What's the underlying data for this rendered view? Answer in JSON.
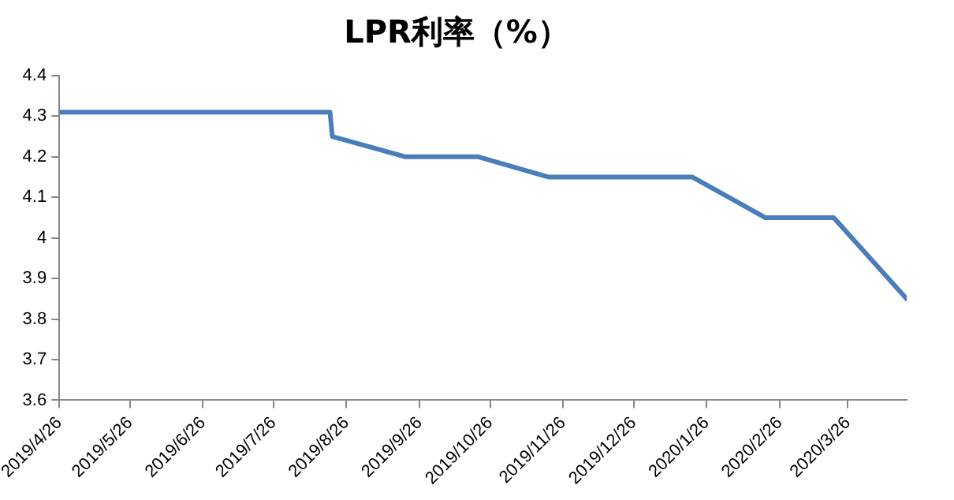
{
  "chart_data": {
    "type": "line",
    "title": "LPR利率（%）",
    "x": [
      "2019-04-26",
      "2019-08-19",
      "2019-08-20",
      "2019-09-20",
      "2019-10-21",
      "2019-11-20",
      "2020-01-20",
      "2020-02-20",
      "2020-03-20",
      "2020-04-20"
    ],
    "series": [
      {
        "color": "#4a7ebb",
        "values": [
          4.31,
          4.31,
          4.25,
          4.2,
          4.2,
          4.15,
          4.15,
          4.05,
          4.05,
          3.85
        ]
      }
    ],
    "xlim": [
      "2019-04-26",
      "2020-04-20"
    ],
    "xticks": [
      {
        "value": "2019-04-26",
        "label": "2019/4/26"
      },
      {
        "value": "2019-05-26",
        "label": "2019/5/26"
      },
      {
        "value": "2019-06-26",
        "label": "2019/6/26"
      },
      {
        "value": "2019-07-26",
        "label": "2019/7/26"
      },
      {
        "value": "2019-08-26",
        "label": "2019/8/26"
      },
      {
        "value": "2019-09-26",
        "label": "2019/9/26"
      },
      {
        "value": "2019-10-26",
        "label": "2019/10/26"
      },
      {
        "value": "2019-11-26",
        "label": "2019/11/26"
      },
      {
        "value": "2019-12-26",
        "label": "2019/12/26"
      },
      {
        "value": "2020-01-26",
        "label": "2020/1/26"
      },
      {
        "value": "2020-02-26",
        "label": "2020/2/26"
      },
      {
        "value": "2020-03-26",
        "label": "2020/3/26"
      }
    ],
    "ylim": [
      3.6,
      4.4
    ],
    "yticks": [
      3.6,
      3.7,
      3.8,
      3.9,
      4,
      4.1,
      4.2,
      4.3,
      4.4
    ],
    "grid": false,
    "legend": false,
    "marker": "none",
    "line_style": "solid"
  }
}
